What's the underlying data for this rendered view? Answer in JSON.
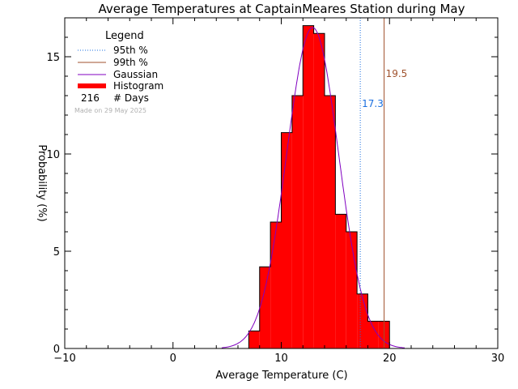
{
  "chart_data": {
    "type": "bar",
    "title": "Average Temperatures at CaptainMeares Station during May",
    "xlabel": "Average Temperature (C)",
    "ylabel": "Probability (%)",
    "xlim": [
      -10,
      30
    ],
    "ylim": [
      0,
      17
    ],
    "xticks": [
      "−10",
      "0",
      "10",
      "20",
      "30"
    ],
    "xtick_values": [
      -10,
      0,
      10,
      20,
      30
    ],
    "yticks": [
      "0",
      "5",
      "10",
      "15"
    ],
    "ytick_values": [
      0,
      5,
      10,
      15
    ],
    "histogram": {
      "bin_width": 1,
      "bin_left_edges": [
        7,
        8,
        9,
        10,
        11,
        12,
        13,
        14,
        15,
        16,
        17,
        18,
        19
      ],
      "values": [
        0.9,
        4.2,
        6.5,
        11.1,
        13.0,
        16.6,
        16.2,
        13.0,
        6.9,
        6.0,
        2.8,
        1.4,
        1.4
      ],
      "color": "#ff0000"
    },
    "gaussian": {
      "mean": 12.9,
      "std": 2.4,
      "peak": 16.5,
      "color": "#8000c0"
    },
    "percentile_95": {
      "value": 17.3,
      "label": "17.3",
      "color": "#1a6fe0"
    },
    "percentile_99": {
      "value": 19.5,
      "label": "19.5",
      "color": "#a0522d"
    },
    "legend": {
      "title": "Legend",
      "placement": "top-left",
      "entries": [
        {
          "label": "95th %",
          "style": "dotted",
          "color": "#1a6fe0"
        },
        {
          "label": "99th %",
          "style": "solid",
          "color": "#a0522d"
        },
        {
          "label": "Gaussian",
          "style": "solid",
          "color": "#8000c0"
        },
        {
          "label": "Histogram",
          "style": "thick",
          "color": "#ff0000"
        }
      ],
      "days_count": "216",
      "days_label": "# Days",
      "made_on": "Made on 29 May 2025"
    }
  }
}
